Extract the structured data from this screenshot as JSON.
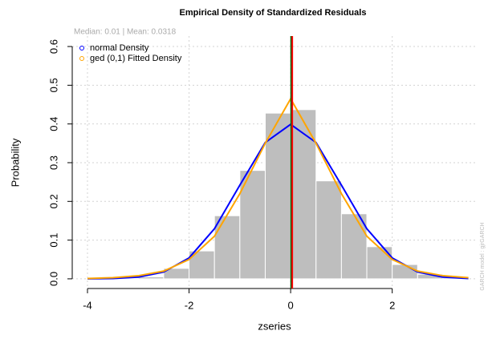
{
  "chart_data": {
    "type": "histogram",
    "title": "Empirical Density of Standardized Residuals",
    "subtitle": "Median:  0.01 | Mean:  0.0318",
    "side_text": "GARCH model : gjrGARCH",
    "xlabel": "zseries",
    "ylabel": "Probability",
    "xlim": [
      -4.3,
      3.68
    ],
    "ylim": [
      -0.025,
      0.627
    ],
    "xticks": [
      -4,
      -2,
      0,
      2
    ],
    "yticks": [
      {
        "value": 0,
        "label": "0.0"
      },
      0.1,
      0.2,
      0.3,
      0.4,
      0.5,
      0.6
    ],
    "grid": true,
    "legend": "top-left",
    "bins": [
      -4,
      -3.5,
      -3,
      -2.5,
      -2,
      -1.5,
      -1,
      -0.5,
      0,
      0.5,
      1,
      1.5,
      2,
      2.5,
      3,
      3.5
    ],
    "counts": [
      0.002,
      0.002,
      0.005,
      0.027,
      0.072,
      0.163,
      0.28,
      0.428,
      0.437,
      0.253,
      0.168,
      0.083,
      0.037,
      0.012,
      0.003
    ],
    "bar_color": "#bebebe",
    "x": [
      -4,
      -3.5,
      -3,
      -2.5,
      -2,
      -1.5,
      -1,
      -0.5,
      0,
      0.5,
      1,
      1.5,
      2,
      2.5,
      3,
      3.5
    ],
    "series": [
      {
        "name": "normal Density",
        "color": "#0000ff",
        "values": [
          0.0001,
          0.0009,
          0.0044,
          0.0175,
          0.054,
          0.1295,
          0.242,
          0.352,
          0.399,
          0.352,
          0.242,
          0.1295,
          0.054,
          0.0175,
          0.0044,
          0.0009
        ]
      },
      {
        "name": "ged (0,1) Fitted Density",
        "color": "#ffa500",
        "values": [
          0.001,
          0.003,
          0.008,
          0.02,
          0.05,
          0.11,
          0.22,
          0.35,
          0.465,
          0.35,
          0.22,
          0.11,
          0.05,
          0.02,
          0.008,
          0.003
        ]
      }
    ],
    "vlines": [
      {
        "value": 0.01,
        "color": "#006400"
      },
      {
        "value": 0.0318,
        "color": "#ff0000"
      }
    ]
  }
}
